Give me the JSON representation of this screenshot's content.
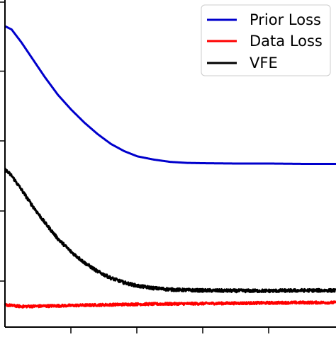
{
  "chart_data": {
    "type": "line",
    "title": "",
    "xlabel": "",
    "ylabel": "",
    "xlim": [
      0,
      100
    ],
    "ylim": [
      0,
      100
    ],
    "grid": false,
    "legend": {
      "placement": "top-right",
      "entries": [
        "Prior Loss",
        "Data Loss",
        "VFE"
      ]
    },
    "series": [
      {
        "name": "Prior Loss",
        "color": "#0000cc",
        "noise": 0.0,
        "x": [
          0,
          2,
          5,
          8,
          12,
          16,
          20,
          24,
          28,
          32,
          36,
          40,
          45,
          50,
          55,
          60,
          70,
          80,
          90,
          100
        ],
        "y": [
          92,
          91,
          87,
          82.5,
          76.5,
          71,
          66.5,
          62.5,
          59,
          56,
          53.8,
          52.2,
          51.2,
          50.5,
          50.2,
          50.1,
          50.0,
          50.0,
          49.9,
          49.9
        ]
      },
      {
        "name": "Data Loss",
        "color": "#ff0000",
        "noise": 0.35,
        "x": [
          0,
          5,
          10,
          20,
          30,
          40,
          50,
          60,
          70,
          80,
          90,
          100
        ],
        "y": [
          6.8,
          6.3,
          6.4,
          6.6,
          6.8,
          7.0,
          7.1,
          7.2,
          7.3,
          7.4,
          7.5,
          7.5
        ]
      },
      {
        "name": "VFE",
        "color": "#000000",
        "noise": 0.45,
        "x": [
          0,
          2,
          5,
          8,
          12,
          16,
          20,
          24,
          28,
          32,
          36,
          40,
          45,
          50,
          55,
          60,
          70,
          80,
          90,
          100
        ],
        "y": [
          48.2,
          46.3,
          42.0,
          37.5,
          32.0,
          27.0,
          23.0,
          19.7,
          17.0,
          15.0,
          13.6,
          12.6,
          11.9,
          11.5,
          11.3,
          11.2,
          11.1,
          11.1,
          11.2,
          11.2
        ]
      }
    ]
  }
}
